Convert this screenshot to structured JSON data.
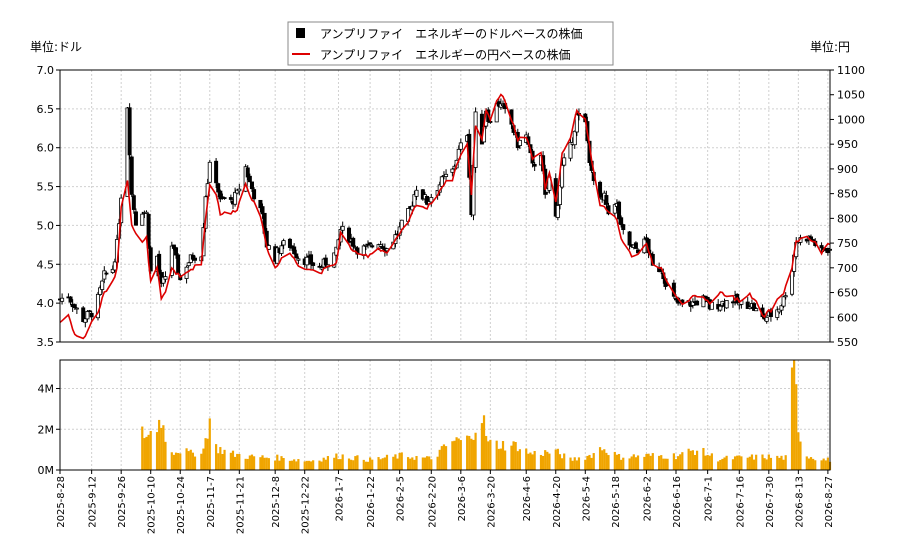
{
  "chart_data": [
    {
      "type": "candlestick",
      "left_unit_label": "単位:ドル",
      "right_unit_label": "単位:円",
      "y_left_lim": [
        3.5,
        7.0
      ],
      "y_left_ticks": [
        "3.5",
        "4.0",
        "4.5",
        "5.0",
        "5.5",
        "6.0",
        "6.5",
        "7.0"
      ],
      "y_right_lim": [
        550,
        1100
      ],
      "y_right_ticks": [
        "550",
        "600",
        "650",
        "700",
        "750",
        "800",
        "850",
        "900",
        "950",
        "1000",
        "1050",
        "1100"
      ],
      "legend_position": "top-center",
      "legend": {
        "usd": "アンプリファイ　エネルギーのドルベースの株価",
        "jpy": "アンプリファイ　エネルギーの円ベースの株価"
      },
      "series_colors": {
        "usd": "#000000",
        "jpy": "#dd0000"
      },
      "grid": true,
      "usd_close_anchors": [
        [
          "2025-08-28",
          4.05
        ],
        [
          "2025-09-01",
          4.1
        ],
        [
          "2025-09-04",
          3.95
        ],
        [
          "2025-09-08",
          3.8
        ],
        [
          "2025-09-12",
          3.88
        ],
        [
          "2025-09-15",
          4.05
        ],
        [
          "2025-09-18",
          4.35
        ],
        [
          "2025-09-22",
          4.45
        ],
        [
          "2025-09-24",
          4.75
        ],
        [
          "2025-09-26",
          5.4
        ],
        [
          "2025-09-29",
          6.55
        ],
        [
          "2025-10-01",
          5.4
        ],
        [
          "2025-10-03",
          5.05
        ],
        [
          "2025-10-06",
          5.2
        ],
        [
          "2025-10-08",
          5.15
        ],
        [
          "2025-10-10",
          4.4
        ],
        [
          "2025-10-13",
          4.6
        ],
        [
          "2025-10-15",
          4.2
        ],
        [
          "2025-10-17",
          4.35
        ],
        [
          "2025-10-20",
          4.75
        ],
        [
          "2025-10-22",
          4.55
        ],
        [
          "2025-10-24",
          4.3
        ],
        [
          "2025-10-27",
          4.5
        ],
        [
          "2025-10-30",
          4.6
        ],
        [
          "2025-11-03",
          4.65
        ],
        [
          "2025-11-05",
          5.4
        ],
        [
          "2025-11-07",
          5.75
        ],
        [
          "2025-11-10",
          5.6
        ],
        [
          "2025-11-12",
          5.3
        ],
        [
          "2025-11-14",
          5.35
        ],
        [
          "2025-11-17",
          5.3
        ],
        [
          "2025-11-20",
          5.4
        ],
        [
          "2025-11-24",
          5.75
        ],
        [
          "2025-11-26",
          5.55
        ],
        [
          "2025-11-28",
          5.4
        ],
        [
          "2025-12-02",
          5.1
        ],
        [
          "2025-12-04",
          4.75
        ],
        [
          "2025-12-08",
          4.6
        ],
        [
          "2025-12-11",
          4.75
        ],
        [
          "2025-12-15",
          4.75
        ],
        [
          "2025-12-19",
          4.6
        ],
        [
          "2025-12-23",
          4.55
        ],
        [
          "2025-12-29",
          4.45
        ],
        [
          "2026-01-02",
          4.55
        ],
        [
          "2026-01-06",
          4.65
        ],
        [
          "2026-01-08",
          4.95
        ],
        [
          "2026-01-12",
          4.85
        ],
        [
          "2026-01-16",
          4.7
        ],
        [
          "2026-01-21",
          4.7
        ],
        [
          "2026-01-26",
          4.8
        ],
        [
          "2026-01-30",
          4.7
        ],
        [
          "2026-02-04",
          4.9
        ],
        [
          "2026-02-10",
          5.2
        ],
        [
          "2026-02-13",
          5.5
        ],
        [
          "2026-02-18",
          5.3
        ],
        [
          "2026-02-23",
          5.5
        ],
        [
          "2026-02-26",
          5.6
        ],
        [
          "2026-03-02",
          5.7
        ],
        [
          "2026-03-05",
          5.95
        ],
        [
          "2026-03-09",
          6.2
        ],
        [
          "2026-03-11",
          5.15
        ],
        [
          "2026-03-13",
          6.4
        ],
        [
          "2026-03-16",
          6.1
        ],
        [
          "2026-03-18",
          6.5
        ],
        [
          "2026-03-20",
          6.3
        ],
        [
          "2026-03-23",
          6.6
        ],
        [
          "2026-03-26",
          6.5
        ],
        [
          "2026-03-30",
          6.3
        ],
        [
          "2026-04-02",
          6.05
        ],
        [
          "2026-04-06",
          6.15
        ],
        [
          "2026-04-09",
          5.75
        ],
        [
          "2026-04-13",
          5.95
        ],
        [
          "2026-04-15",
          5.35
        ],
        [
          "2026-04-17",
          5.6
        ],
        [
          "2026-04-20",
          5.1
        ],
        [
          "2026-04-23",
          5.75
        ],
        [
          "2026-04-27",
          6.0
        ],
        [
          "2026-04-30",
          6.4
        ],
        [
          "2026-05-04",
          6.3
        ],
        [
          "2026-05-07",
          5.65
        ],
        [
          "2026-05-11",
          5.3
        ],
        [
          "2026-05-13",
          5.35
        ],
        [
          "2026-05-15",
          5.2
        ],
        [
          "2026-05-19",
          5.25
        ],
        [
          "2026-05-21",
          4.95
        ],
        [
          "2026-05-26",
          4.7
        ],
        [
          "2026-05-29",
          4.7
        ],
        [
          "2026-06-02",
          4.8
        ],
        [
          "2026-06-05",
          4.45
        ],
        [
          "2026-06-09",
          4.45
        ],
        [
          "2026-06-12",
          4.2
        ],
        [
          "2026-06-16",
          4.0
        ],
        [
          "2026-06-19",
          3.98
        ],
        [
          "2026-06-24",
          4.0
        ],
        [
          "2026-06-29",
          4.05
        ],
        [
          "2026-07-02",
          3.95
        ],
        [
          "2026-07-07",
          4.0
        ],
        [
          "2026-07-13",
          4.05
        ],
        [
          "2026-07-16",
          3.98
        ],
        [
          "2026-07-21",
          4.0
        ],
        [
          "2026-07-24",
          3.9
        ],
        [
          "2026-07-27",
          3.8
        ],
        [
          "2026-07-31",
          3.85
        ],
        [
          "2026-08-04",
          3.95
        ],
        [
          "2026-08-06",
          4.05
        ],
        [
          "2026-08-10",
          4.45
        ],
        [
          "2026-08-12",
          4.8
        ],
        [
          "2026-08-17",
          4.85
        ],
        [
          "2026-08-20",
          4.8
        ],
        [
          "2026-08-24",
          4.65
        ],
        [
          "2026-08-26",
          4.7
        ]
      ],
      "jpy_close_anchors": [
        [
          "2025-08-28",
          590
        ],
        [
          "2025-09-01",
          605
        ],
        [
          "2025-09-04",
          565
        ],
        [
          "2025-09-08",
          555
        ],
        [
          "2025-09-12",
          590
        ],
        [
          "2025-09-15",
          610
        ],
        [
          "2025-09-18",
          650
        ],
        [
          "2025-09-22",
          670
        ],
        [
          "2025-09-24",
          700
        ],
        [
          "2025-09-26",
          820
        ],
        [
          "2025-09-29",
          880
        ],
        [
          "2025-10-01",
          790
        ],
        [
          "2025-10-03",
          770
        ],
        [
          "2025-10-06",
          750
        ],
        [
          "2025-10-08",
          760
        ],
        [
          "2025-10-10",
          670
        ],
        [
          "2025-10-13",
          700
        ],
        [
          "2025-10-15",
          635
        ],
        [
          "2025-10-17",
          650
        ],
        [
          "2025-10-20",
          700
        ],
        [
          "2025-10-22",
          690
        ],
        [
          "2025-10-24",
          680
        ],
        [
          "2025-10-27",
          690
        ],
        [
          "2025-10-30",
          700
        ],
        [
          "2025-11-03",
          710
        ],
        [
          "2025-11-05",
          800
        ],
        [
          "2025-11-07",
          870
        ],
        [
          "2025-11-10",
          850
        ],
        [
          "2025-11-12",
          810
        ],
        [
          "2025-11-14",
          810
        ],
        [
          "2025-11-17",
          810
        ],
        [
          "2025-11-20",
          820
        ],
        [
          "2025-11-24",
          870
        ],
        [
          "2025-11-26",
          850
        ],
        [
          "2025-11-28",
          830
        ],
        [
          "2025-12-02",
          790
        ],
        [
          "2025-12-04",
          740
        ],
        [
          "2025-12-08",
          700
        ],
        [
          "2025-12-11",
          720
        ],
        [
          "2025-12-15",
          730
        ],
        [
          "2025-12-19",
          705
        ],
        [
          "2025-12-23",
          700
        ],
        [
          "2025-12-29",
          690
        ],
        [
          "2026-01-02",
          700
        ],
        [
          "2026-01-06",
          710
        ],
        [
          "2026-01-08",
          770
        ],
        [
          "2026-01-12",
          745
        ],
        [
          "2026-01-16",
          725
        ],
        [
          "2026-01-21",
          725
        ],
        [
          "2026-01-26",
          740
        ],
        [
          "2026-01-30",
          730
        ],
        [
          "2026-02-04",
          760
        ],
        [
          "2026-02-10",
          800
        ],
        [
          "2026-02-13",
          830
        ],
        [
          "2026-02-18",
          820
        ],
        [
          "2026-02-23",
          850
        ],
        [
          "2026-02-26",
          870
        ],
        [
          "2026-03-02",
          880
        ],
        [
          "2026-03-05",
          920
        ],
        [
          "2026-03-09",
          950
        ],
        [
          "2026-03-11",
          850
        ],
        [
          "2026-03-13",
          990
        ],
        [
          "2026-03-16",
          960
        ],
        [
          "2026-03-18",
          1020
        ],
        [
          "2026-03-20",
          1000
        ],
        [
          "2026-03-23",
          1040
        ],
        [
          "2026-03-26",
          1050
        ],
        [
          "2026-03-30",
          1000
        ],
        [
          "2026-04-02",
          960
        ],
        [
          "2026-04-06",
          965
        ],
        [
          "2026-04-09",
          920
        ],
        [
          "2026-04-13",
          935
        ],
        [
          "2026-04-15",
          860
        ],
        [
          "2026-04-17",
          890
        ],
        [
          "2026-04-20",
          830
        ],
        [
          "2026-04-23",
          930
        ],
        [
          "2026-04-27",
          960
        ],
        [
          "2026-04-30",
          1020
        ],
        [
          "2026-05-04",
          1000
        ],
        [
          "2026-05-07",
          920
        ],
        [
          "2026-05-11",
          830
        ],
        [
          "2026-05-13",
          820
        ],
        [
          "2026-05-15",
          810
        ],
        [
          "2026-05-19",
          800
        ],
        [
          "2026-05-21",
          760
        ],
        [
          "2026-05-26",
          725
        ],
        [
          "2026-05-29",
          730
        ],
        [
          "2026-06-02",
          745
        ],
        [
          "2026-06-05",
          710
        ],
        [
          "2026-06-09",
          700
        ],
        [
          "2026-06-12",
          670
        ],
        [
          "2026-06-16",
          640
        ],
        [
          "2026-06-19",
          630
        ],
        [
          "2026-06-24",
          640
        ],
        [
          "2026-06-29",
          640
        ],
        [
          "2026-07-02",
          630
        ],
        [
          "2026-07-07",
          650
        ],
        [
          "2026-07-13",
          640
        ],
        [
          "2026-07-16",
          635
        ],
        [
          "2026-07-21",
          645
        ],
        [
          "2026-07-24",
          630
        ],
        [
          "2026-07-27",
          600
        ],
        [
          "2026-07-31",
          615
        ],
        [
          "2026-08-04",
          640
        ],
        [
          "2026-08-06",
          650
        ],
        [
          "2026-08-10",
          700
        ],
        [
          "2026-08-12",
          755
        ],
        [
          "2026-08-17",
          760
        ],
        [
          "2026-08-20",
          755
        ],
        [
          "2026-08-24",
          730
        ],
        [
          "2026-08-26",
          745
        ]
      ]
    },
    {
      "type": "bar",
      "y_lim": [
        0,
        5400000
      ],
      "y_ticks": [
        "0M",
        "2M",
        "4M"
      ],
      "bar_color": "#f0a500",
      "x_range": [
        "2025-08-28",
        "2026-08-28"
      ],
      "x_tick_labels": [
        "2025-8-28",
        "2025-9-12",
        "2025-9-26",
        "2025-10-10",
        "2025-10-24",
        "2025-11-7",
        "2025-11-21",
        "2025-12-8",
        "2025-12-22",
        "2026-1-7",
        "2026-1-22",
        "2026-2-5",
        "2026-2-20",
        "2026-3-6",
        "2026-3-20",
        "2026-4-6",
        "2026-4-20",
        "2026-5-4",
        "2026-5-18",
        "2026-6-2",
        "2026-6-16",
        "2026-7-1",
        "2026-7-16",
        "2026-7-30",
        "2026-8-13",
        "2026-8-27"
      ],
      "volume_start": "2025-10-06",
      "volume_anchors": [
        [
          "2025-10-06",
          1800000
        ],
        [
          "2025-10-09",
          1700000
        ],
        [
          "2025-10-13",
          2200000
        ],
        [
          "2025-10-15",
          2600000
        ],
        [
          "2025-10-17",
          1500000
        ],
        [
          "2025-10-21",
          900000
        ],
        [
          "2025-10-24",
          1000000
        ],
        [
          "2025-10-29",
          800000
        ],
        [
          "2025-11-04",
          1000000
        ],
        [
          "2025-11-07",
          2500000
        ],
        [
          "2025-11-10",
          1100000
        ],
        [
          "2025-11-17",
          800000
        ],
        [
          "2025-11-26",
          650000
        ],
        [
          "2025-12-10",
          600000
        ],
        [
          "2025-12-24",
          450000
        ],
        [
          "2026-01-08",
          700000
        ],
        [
          "2026-01-22",
          500000
        ],
        [
          "2026-02-06",
          700000
        ],
        [
          "2026-02-20",
          550000
        ],
        [
          "2026-03-02",
          1400000
        ],
        [
          "2026-03-10",
          1500000
        ],
        [
          "2026-03-13",
          2200000
        ],
        [
          "2026-03-16",
          2750000
        ],
        [
          "2026-03-19",
          1300000
        ],
        [
          "2026-03-25",
          1250000
        ],
        [
          "2026-04-02",
          1200000
        ],
        [
          "2026-04-08",
          800000
        ],
        [
          "2026-04-20",
          900000
        ],
        [
          "2026-04-27",
          500000
        ],
        [
          "2026-05-06",
          700000
        ],
        [
          "2026-05-12",
          1100000
        ],
        [
          "2026-05-20",
          650000
        ],
        [
          "2026-06-03",
          700000
        ],
        [
          "2026-06-16",
          700000
        ],
        [
          "2026-06-26",
          1000000
        ],
        [
          "2026-07-06",
          550000
        ],
        [
          "2026-07-16",
          600000
        ],
        [
          "2026-07-28",
          650000
        ],
        [
          "2026-08-07",
          600000
        ],
        [
          "2026-08-11",
          5300000
        ],
        [
          "2026-08-13",
          2100000
        ],
        [
          "2026-08-17",
          700000
        ],
        [
          "2026-08-26",
          500000
        ]
      ]
    }
  ]
}
